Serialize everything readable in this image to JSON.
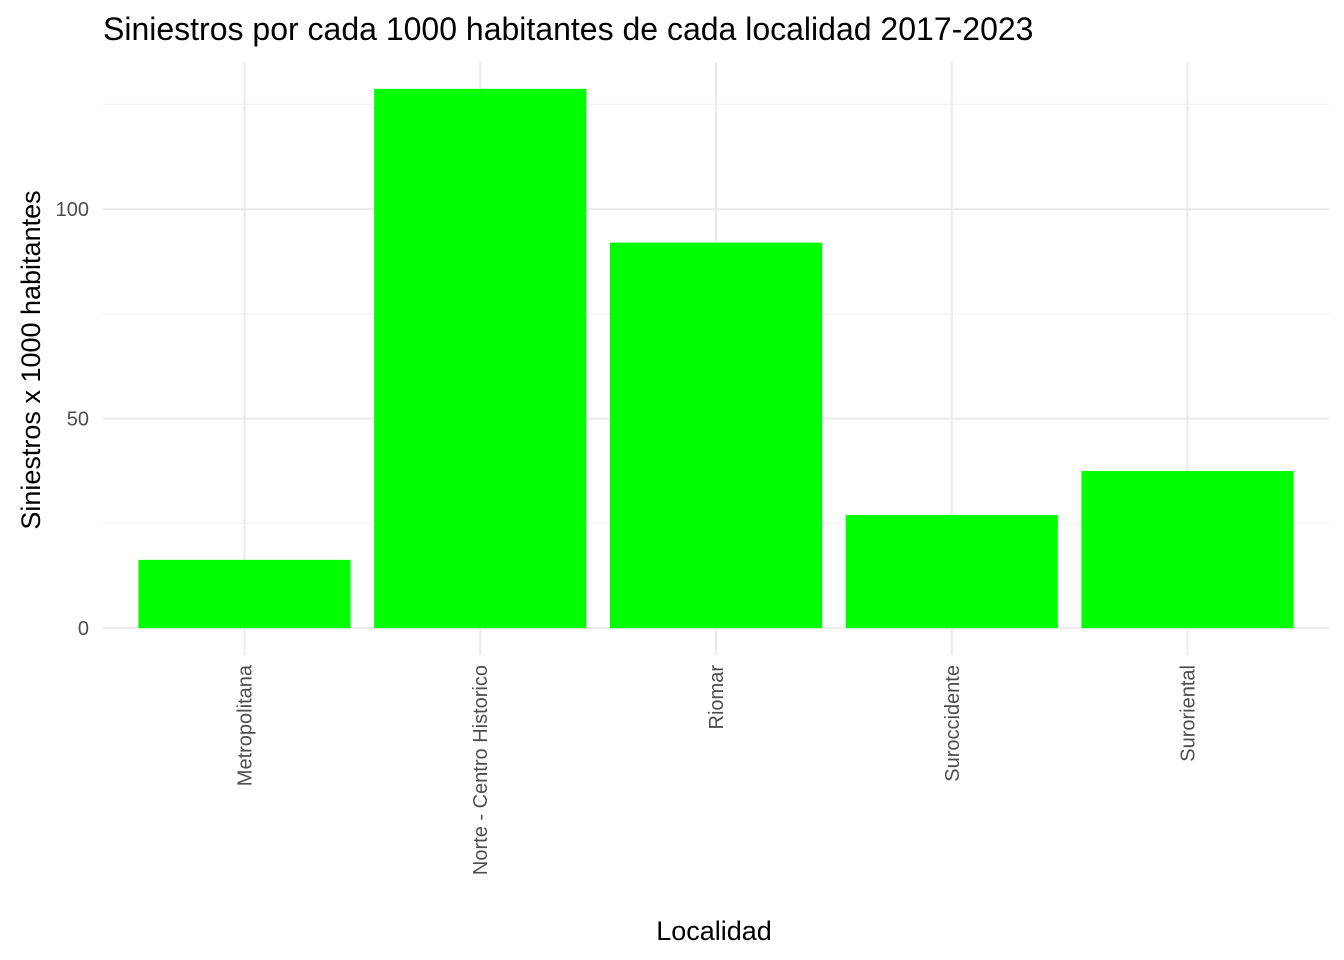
{
  "chart_data": {
    "type": "bar",
    "title": "Siniestros por cada 1000 habitantes de cada localidad 2017-2023",
    "xlabel": "Localidad",
    "ylabel": "Siniestros x 1000 habitantes",
    "categories": [
      "Metropolitana",
      "Norte - Centro Historico",
      "Riomar",
      "Suroccidente",
      "Suroriental"
    ],
    "values": [
      16.3,
      128.7,
      92.0,
      27.0,
      37.5
    ],
    "ylim": [
      -6.4,
      135.1
    ],
    "yticks": [
      0,
      50,
      100
    ],
    "y_tick_labels": [
      "0",
      "50",
      "100"
    ],
    "bar_color": "#00ff00",
    "grid": true,
    "legend": "none"
  }
}
